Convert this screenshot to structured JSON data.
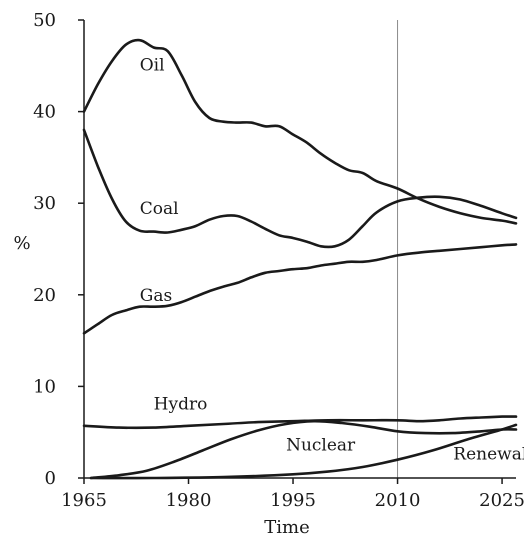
{
  "chart_data": {
    "type": "line",
    "title": "",
    "xlabel": "Time",
    "ylabel": "%",
    "xlim": [
      1965,
      2027
    ],
    "ylim": [
      0,
      50
    ],
    "x_ticks": [
      {
        "value": 1965,
        "label": "1965"
      },
      {
        "value": 1980,
        "label": "1980"
      },
      {
        "value": 1995,
        "label": "1995"
      },
      {
        "value": 2010,
        "label": "2010"
      },
      {
        "value": 2025,
        "label": "2025"
      }
    ],
    "y_ticks": [
      {
        "value": 0,
        "label": "0"
      },
      {
        "value": 10,
        "label": "10"
      },
      {
        "value": 20,
        "label": "20"
      },
      {
        "value": 30,
        "label": "30"
      },
      {
        "value": 40,
        "label": "40"
      },
      {
        "value": 50,
        "label": "50"
      }
    ],
    "grid": false,
    "reference_line_x": 2010,
    "series": [
      {
        "name": "Oil",
        "label_at": [
          1973,
          44.5
        ],
        "points": [
          [
            1965,
            40
          ],
          [
            1967,
            43
          ],
          [
            1969,
            45.5
          ],
          [
            1971,
            47.3
          ],
          [
            1973,
            47.8
          ],
          [
            1975,
            47
          ],
          [
            1977,
            46.6
          ],
          [
            1979,
            44
          ],
          [
            1981,
            41
          ],
          [
            1983,
            39.3
          ],
          [
            1985,
            38.9
          ],
          [
            1987,
            38.8
          ],
          [
            1989,
            38.8
          ],
          [
            1991,
            38.4
          ],
          [
            1993,
            38.4
          ],
          [
            1995,
            37.5
          ],
          [
            1997,
            36.6
          ],
          [
            1999,
            35.4
          ],
          [
            2001,
            34.4
          ],
          [
            2003,
            33.6
          ],
          [
            2005,
            33.3
          ],
          [
            2007,
            32.4
          ],
          [
            2010,
            31.6
          ],
          [
            2013,
            30.5
          ],
          [
            2016,
            29.6
          ],
          [
            2019,
            28.9
          ],
          [
            2022,
            28.4
          ],
          [
            2025,
            28.1
          ],
          [
            2027,
            27.8
          ]
        ]
      },
      {
        "name": "Coal",
        "label_at": [
          1973,
          28.8
        ],
        "points": [
          [
            1965,
            38
          ],
          [
            1967,
            34
          ],
          [
            1969,
            30.5
          ],
          [
            1971,
            28
          ],
          [
            1973,
            27
          ],
          [
            1975,
            26.9
          ],
          [
            1977,
            26.8
          ],
          [
            1979,
            27.1
          ],
          [
            1981,
            27.5
          ],
          [
            1983,
            28.2
          ],
          [
            1985,
            28.6
          ],
          [
            1987,
            28.6
          ],
          [
            1989,
            28
          ],
          [
            1991,
            27.2
          ],
          [
            1993,
            26.5
          ],
          [
            1995,
            26.2
          ],
          [
            1997,
            25.8
          ],
          [
            1999,
            25.3
          ],
          [
            2001,
            25.3
          ],
          [
            2003,
            26
          ],
          [
            2005,
            27.5
          ],
          [
            2007,
            29
          ],
          [
            2010,
            30.2
          ],
          [
            2013,
            30.6
          ],
          [
            2016,
            30.7
          ],
          [
            2019,
            30.4
          ],
          [
            2022,
            29.7
          ],
          [
            2025,
            28.9
          ],
          [
            2027,
            28.4
          ]
        ]
      },
      {
        "name": "Gas",
        "label_at": [
          1973,
          19.3
        ],
        "points": [
          [
            1965,
            15.8
          ],
          [
            1967,
            16.8
          ],
          [
            1969,
            17.8
          ],
          [
            1971,
            18.3
          ],
          [
            1973,
            18.7
          ],
          [
            1975,
            18.7
          ],
          [
            1977,
            18.8
          ],
          [
            1979,
            19.2
          ],
          [
            1981,
            19.8
          ],
          [
            1983,
            20.4
          ],
          [
            1985,
            20.9
          ],
          [
            1987,
            21.3
          ],
          [
            1989,
            21.9
          ],
          [
            1991,
            22.4
          ],
          [
            1993,
            22.6
          ],
          [
            1995,
            22.8
          ],
          [
            1997,
            22.9
          ],
          [
            1999,
            23.2
          ],
          [
            2001,
            23.4
          ],
          [
            2003,
            23.6
          ],
          [
            2005,
            23.6
          ],
          [
            2007,
            23.8
          ],
          [
            2010,
            24.3
          ],
          [
            2013,
            24.6
          ],
          [
            2016,
            24.8
          ],
          [
            2019,
            25
          ],
          [
            2022,
            25.2
          ],
          [
            2025,
            25.4
          ],
          [
            2027,
            25.5
          ]
        ]
      },
      {
        "name": "Hydro",
        "label_at": [
          1975,
          7.5
        ],
        "points": [
          [
            1965,
            5.7
          ],
          [
            1970,
            5.5
          ],
          [
            1975,
            5.5
          ],
          [
            1980,
            5.7
          ],
          [
            1985,
            5.9
          ],
          [
            1990,
            6.1
          ],
          [
            1995,
            6.2
          ],
          [
            2000,
            6.3
          ],
          [
            2005,
            6.3
          ],
          [
            2010,
            6.3
          ],
          [
            2013,
            6.2
          ],
          [
            2016,
            6.3
          ],
          [
            2019,
            6.5
          ],
          [
            2022,
            6.6
          ],
          [
            2025,
            6.7
          ],
          [
            2027,
            6.7
          ]
        ]
      },
      {
        "name": "Nuclear",
        "label_at": [
          1994,
          3.0
        ],
        "points": [
          [
            1966,
            0
          ],
          [
            1970,
            0.3
          ],
          [
            1974,
            0.8
          ],
          [
            1978,
            1.8
          ],
          [
            1982,
            3
          ],
          [
            1986,
            4.2
          ],
          [
            1990,
            5.2
          ],
          [
            1994,
            5.9
          ],
          [
            1998,
            6.2
          ],
          [
            2002,
            6
          ],
          [
            2006,
            5.6
          ],
          [
            2010,
            5.1
          ],
          [
            2014,
            4.9
          ],
          [
            2018,
            4.9
          ],
          [
            2022,
            5.1
          ],
          [
            2025,
            5.3
          ],
          [
            2027,
            5.3
          ]
        ]
      },
      {
        "name": "Renewables",
        "label_at": [
          2018,
          2.0
        ],
        "points": [
          [
            1966,
            0
          ],
          [
            1975,
            0
          ],
          [
            1985,
            0.1
          ],
          [
            1995,
            0.4
          ],
          [
            2000,
            0.7
          ],
          [
            2005,
            1.2
          ],
          [
            2010,
            2.0
          ],
          [
            2015,
            3.0
          ],
          [
            2020,
            4.2
          ],
          [
            2025,
            5.3
          ],
          [
            2027,
            5.8
          ]
        ]
      }
    ]
  }
}
